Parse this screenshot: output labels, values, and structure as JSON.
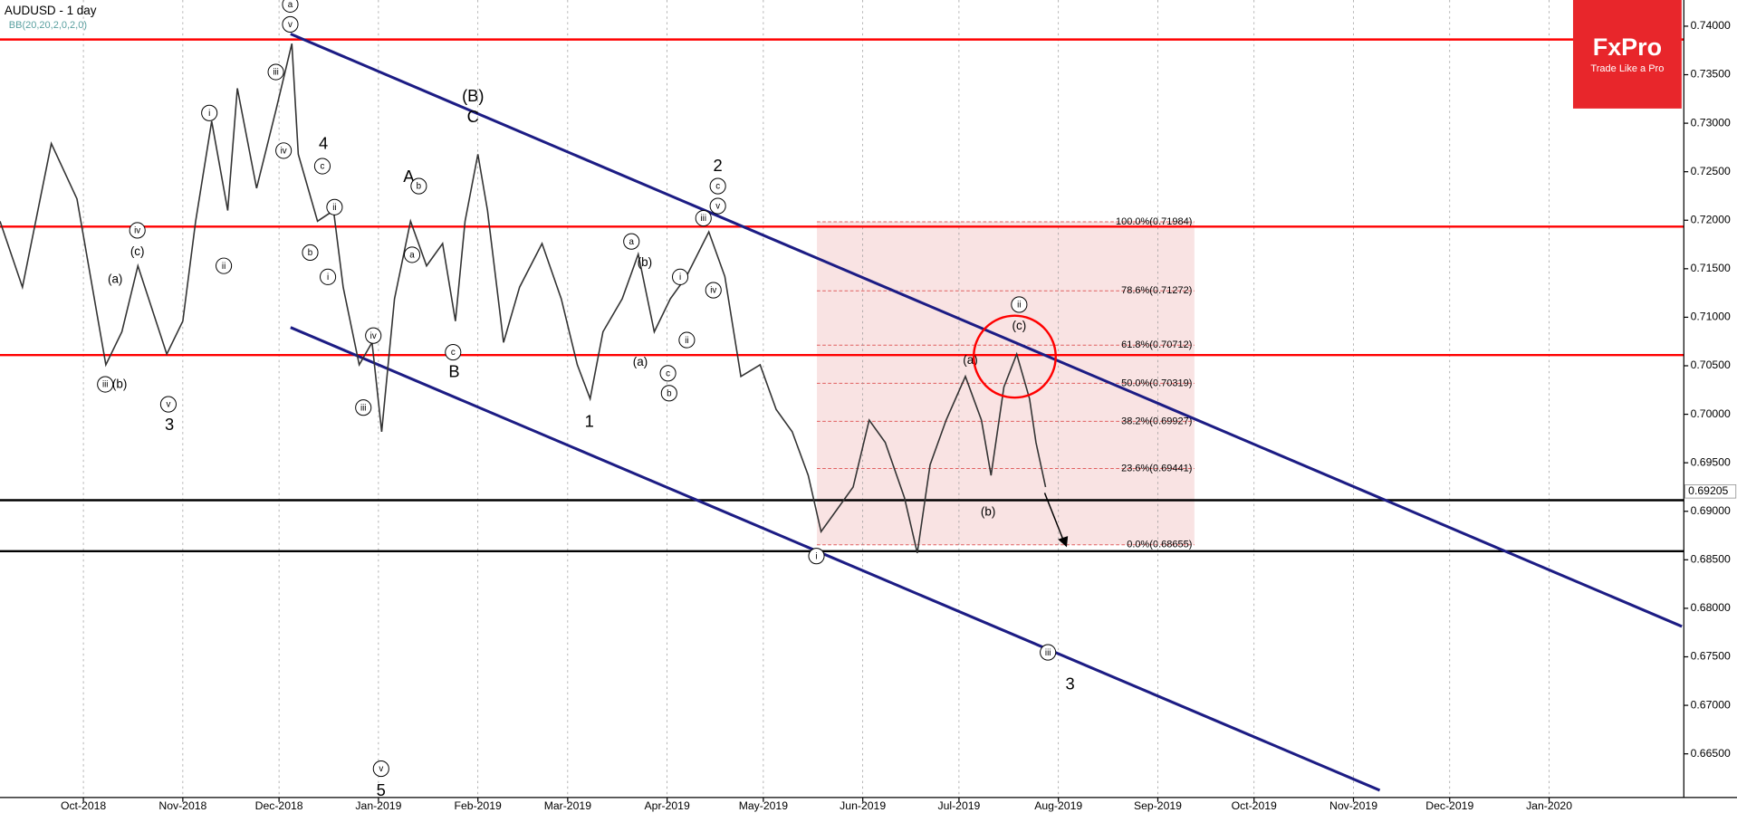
{
  "chart_data": {
    "type": "line",
    "title": "AUDUSD - 1 day",
    "subtitle": "BB(20,20,2,0,2,0)",
    "color": "#333333",
    "x": [
      -26,
      -19,
      -10,
      -2,
      7,
      12,
      17,
      26,
      31,
      35,
      40,
      45,
      48,
      54,
      60,
      65,
      67,
      73,
      78,
      81,
      86,
      90,
      93,
      97,
      102,
      107,
      112,
      116,
      119,
      123,
      126,
      131,
      136,
      143,
      149,
      154,
      158,
      162,
      168,
      173,
      178,
      183,
      188,
      195,
      200,
      205,
      211,
      216,
      221,
      226,
      230,
      235,
      240,
      245,
      250,
      256,
      260,
      264,
      269,
      275,
      280,
      283,
      287,
      291,
      295,
      297,
      300
    ],
    "values": [
      0.7199,
      0.7131,
      0.7279,
      0.7222,
      0.7051,
      0.7085,
      0.7153,
      0.7062,
      0.7096,
      0.7199,
      0.7302,
      0.721,
      0.7336,
      0.7233,
      0.7313,
      0.7382,
      0.7268,
      0.7199,
      0.721,
      0.7131,
      0.7051,
      0.7074,
      0.6982,
      0.7119,
      0.7199,
      0.7153,
      0.7176,
      0.7096,
      0.7199,
      0.7268,
      0.721,
      0.7074,
      0.7131,
      0.7176,
      0.7119,
      0.7051,
      0.7016,
      0.7085,
      0.7119,
      0.7165,
      0.7085,
      0.7119,
      0.7142,
      0.7188,
      0.7142,
      0.7039,
      0.7051,
      0.7005,
      0.6982,
      0.6937,
      0.6879,
      0.6902,
      0.6925,
      0.6994,
      0.6971,
      0.6914,
      0.6857,
      0.6948,
      0.6994,
      0.7039,
      0.6994,
      0.6937,
      0.7028,
      0.7062,
      0.7016,
      0.6971,
      0.6925
    ],
    "xlim": [
      -26,
      499
    ],
    "ylim": [
      0.6605,
      0.7427
    ],
    "xticks": [
      {
        "value": 0,
        "label": "Oct-2018"
      },
      {
        "value": 31,
        "label": "Nov-2018"
      },
      {
        "value": 61,
        "label": "Dec-2018"
      },
      {
        "value": 92,
        "label": "Jan-2019"
      },
      {
        "value": 123,
        "label": "Feb-2019"
      },
      {
        "value": 151,
        "label": "Mar-2019"
      },
      {
        "value": 182,
        "label": "Apr-2019"
      },
      {
        "value": 212,
        "label": "May-2019"
      },
      {
        "value": 243,
        "label": "Jun-2019"
      },
      {
        "value": 273,
        "label": "Jul-2019"
      },
      {
        "value": 304,
        "label": "Aug-2019"
      },
      {
        "value": 335,
        "label": "Sep-2019"
      },
      {
        "value": 365,
        "label": "Oct-2019"
      },
      {
        "value": 396,
        "label": "Nov-2019"
      },
      {
        "value": 426,
        "label": "Dec-2019"
      },
      {
        "value": 457,
        "label": "Jan-2020"
      }
    ],
    "yticks": [
      {
        "value": 0.665,
        "label": "0.66500"
      },
      {
        "value": 0.67,
        "label": "0.67000"
      },
      {
        "value": 0.675,
        "label": "0.67500"
      },
      {
        "value": 0.68,
        "label": "0.68000"
      },
      {
        "value": 0.685,
        "label": "0.68500"
      },
      {
        "value": 0.69,
        "label": "0.69000"
      },
      {
        "value": 0.695,
        "label": "0.69500"
      },
      {
        "value": 0.7,
        "label": "0.70000"
      },
      {
        "value": 0.705,
        "label": "0.70500"
      },
      {
        "value": 0.71,
        "label": "0.71000"
      },
      {
        "value": 0.715,
        "label": "0.71500"
      },
      {
        "value": 0.72,
        "label": "0.72000"
      },
      {
        "value": 0.725,
        "label": "0.72500"
      },
      {
        "value": 0.73,
        "label": "0.73000"
      },
      {
        "value": 0.735,
        "label": "0.73500"
      },
      {
        "value": 0.74,
        "label": "0.74000"
      }
    ],
    "last_price": {
      "value": 0.69205,
      "label": "0.69205"
    },
    "levels": [
      {
        "value": 0.73863,
        "color": "#ff0000"
      },
      {
        "value": 0.71934,
        "color": "#ff0000"
      },
      {
        "value": 0.7061,
        "color": "#ff0000"
      },
      {
        "value": 0.69114,
        "color": "#000000"
      },
      {
        "value": 0.68589,
        "color": "#000000"
      }
    ],
    "channels": [
      {
        "x": [
          64.6,
          498.4
        ],
        "y": [
          0.7392,
          0.67813
        ],
        "color": "#1c1c84"
      },
      {
        "x": [
          64.6,
          404.2
        ],
        "y": [
          0.70895,
          0.66124
        ],
        "color": "#1c1c84"
      }
    ],
    "fib": {
      "x": [
        228.7,
        346.4
      ],
      "color": "#f4cccc",
      "levels": [
        0.71984,
        0.71272,
        0.70712,
        0.70319,
        0.69927,
        0.69441,
        0.68655
      ],
      "labels": [
        "100.0%(0.71984)",
        "78.6%(0.71272)",
        "61.8%(0.70712)",
        "50.0%(0.70319)",
        "38.2%(0.69927)",
        "23.6%(0.69441)",
        "0.0%(0.68655)"
      ]
    },
    "annotations": [
      "a",
      "v",
      "iii",
      "iv",
      "4",
      "c",
      "ii",
      "b",
      "i",
      "(B)",
      "C",
      "A",
      "b",
      "a",
      "c",
      "B",
      "iv",
      "iii",
      "v",
      "5",
      "iv",
      "(c)",
      "(a)",
      "iii",
      "(b)",
      "v",
      "3",
      "i",
      "ii",
      "2",
      "c",
      "v",
      "iii",
      "a",
      "(b)",
      "i",
      "iv",
      "ii",
      "(a)",
      "c",
      "b",
      "1",
      "ii",
      "(c)",
      "(a)",
      "(b)",
      "i",
      "iii",
      "3"
    ],
    "logo": {
      "name": "FxPro",
      "tagline": "Trade Like a Pro"
    }
  }
}
